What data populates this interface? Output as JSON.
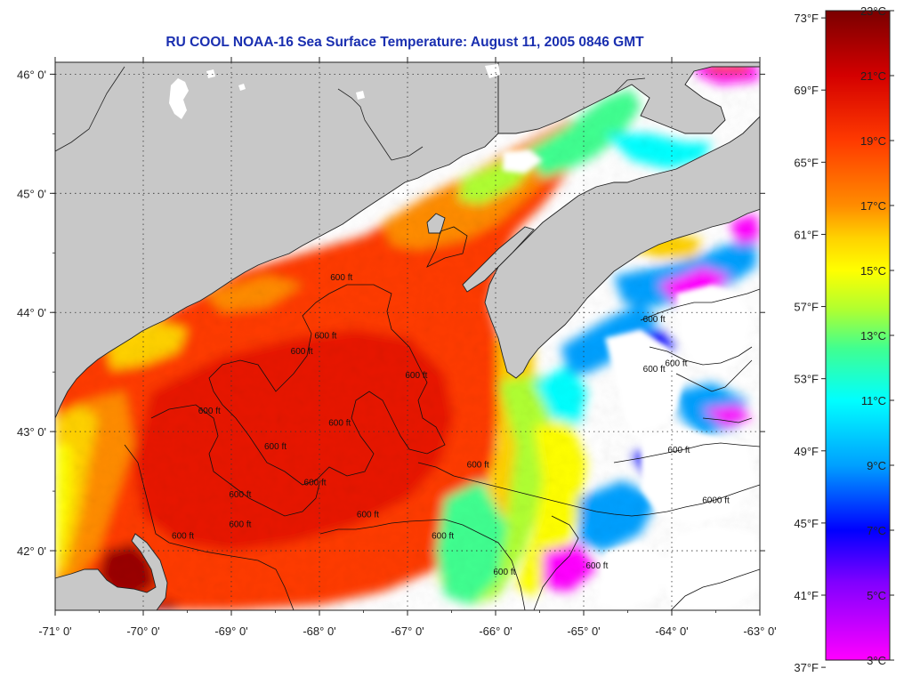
{
  "title": "RU COOL  NOAA-16  Sea Surface Temperature:  August 11, 2005 0846 GMT",
  "map": {
    "lon_range": [
      -71,
      -63
    ],
    "lat_range": [
      41.5,
      46.1
    ],
    "x_ticks": [
      {
        "lon": -71,
        "label": "-71° 0'"
      },
      {
        "lon": -70,
        "label": "-70° 0'"
      },
      {
        "lon": -69,
        "label": "-69° 0'"
      },
      {
        "lon": -68,
        "label": "-68° 0'"
      },
      {
        "lon": -67,
        "label": "-67° 0'"
      },
      {
        "lon": -66,
        "label": "-66° 0'"
      },
      {
        "lon": -65,
        "label": "-65° 0'"
      },
      {
        "lon": -64,
        "label": "-64° 0'"
      },
      {
        "lon": -63,
        "label": "-63° 0'"
      }
    ],
    "y_ticks": [
      {
        "lat": 46,
        "label": "46° 0'"
      },
      {
        "lat": 45,
        "label": "45° 0'"
      },
      {
        "lat": 44,
        "label": "44° 0'"
      },
      {
        "lat": 43,
        "label": "43° 0'"
      },
      {
        "lat": 42,
        "label": "42° 0'"
      }
    ],
    "grid": "dotted",
    "land_color": "#c8c8c8",
    "no_data_color": "#ffffff",
    "contour_labels": [
      {
        "text": "600 ft",
        "lon": -67.75,
        "lat": 44.27
      },
      {
        "text": "600 ft",
        "lon": -67.93,
        "lat": 43.78
      },
      {
        "text": "600 ft",
        "lon": -68.2,
        "lat": 43.65
      },
      {
        "text": "600 ft",
        "lon": -66.9,
        "lat": 43.45
      },
      {
        "text": "600 ft",
        "lon": -69.25,
        "lat": 43.15
      },
      {
        "text": "600 ft",
        "lon": -67.77,
        "lat": 43.05
      },
      {
        "text": "600 ft",
        "lon": -68.5,
        "lat": 42.85
      },
      {
        "text": "600 ft",
        "lon": -68.05,
        "lat": 42.55
      },
      {
        "text": "600 ft",
        "lon": -68.9,
        "lat": 42.45
      },
      {
        "text": "600 ft",
        "lon": -67.45,
        "lat": 42.28
      },
      {
        "text": "600 ft",
        "lon": -69.55,
        "lat": 42.1
      },
      {
        "text": "600 ft",
        "lon": -68.9,
        "lat": 42.2
      },
      {
        "text": "600 ft",
        "lon": -66.6,
        "lat": 42.1
      },
      {
        "text": "600 ft",
        "lon": -65.9,
        "lat": 41.8
      },
      {
        "text": "600 ft",
        "lon": -64.2,
        "lat": 43.92
      },
      {
        "text": "600 ft",
        "lon": -64.2,
        "lat": 43.5
      },
      {
        "text": "600 ft",
        "lon": -63.95,
        "lat": 43.55
      },
      {
        "text": "600 ft",
        "lon": -63.92,
        "lat": 42.82
      },
      {
        "text": "6000 ft",
        "lon": -63.5,
        "lat": 42.4
      },
      {
        "text": "600 ft",
        "lon": -64.85,
        "lat": 41.85
      },
      {
        "text": "600 ft",
        "lon": -66.2,
        "lat": 42.7
      }
    ]
  },
  "colorbar": {
    "f_labels": [
      "73°F",
      "69°F",
      "65°F",
      "61°F",
      "57°F",
      "53°F",
      "49°F",
      "45°F",
      "41°F",
      "37°F"
    ],
    "c_labels": [
      "23°C",
      "21°C",
      "19°C",
      "17°C",
      "15°C",
      "13°C",
      "11°C",
      "9°C",
      "7°C",
      "5°C",
      "3°C"
    ],
    "min_c": 3,
    "max_c": 23,
    "colors": {
      "c23": "#7a0000",
      "c21": "#d40000",
      "c19": "#ff3a00",
      "c17": "#ff8c00",
      "c16": "#ffd200",
      "c15": "#ffff00",
      "c14": "#b0ff30",
      "c13": "#40ff90",
      "c11": "#00ffff",
      "c9": "#00a0ff",
      "c7": "#0000ff",
      "c5": "#8000ff",
      "c3": "#ff00ff"
    }
  }
}
